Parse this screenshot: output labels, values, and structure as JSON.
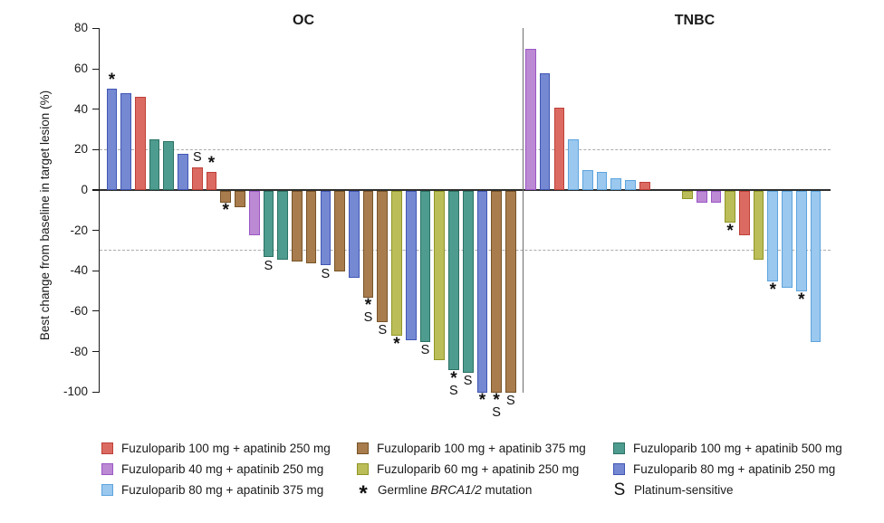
{
  "chart_data": {
    "type": "bar",
    "subtype": "waterfall",
    "ylabel": "Best change from baseline in target lesion (%)",
    "ylim": [
      -100,
      80
    ],
    "yticks": [
      80,
      60,
      40,
      20,
      0,
      -20,
      -40,
      -60,
      -80,
      -100
    ],
    "reference_lines": [
      20,
      -30
    ],
    "grid": "off",
    "legend_position": "bottom",
    "marks_meaning": {
      "*": "Germline BRCA1/2 mutation",
      "S": "Platinum-sensitive"
    },
    "colors": {
      "red": {
        "fill": "#DB6B62",
        "stroke": "#BE4038",
        "label": "Fuzuloparib 100 mg + apatinib 250 mg"
      },
      "violet": {
        "fill": "#BC89D4",
        "stroke": "#9B57C6",
        "label": "Fuzuloparib 40 mg + apatinib 250 mg"
      },
      "sky": {
        "fill": "#9BC8EF",
        "stroke": "#5CA4DD",
        "label": "Fuzuloparib 80 mg + apatinib 375 mg"
      },
      "brown": {
        "fill": "#A87C4D",
        "stroke": "#775327",
        "label": "Fuzuloparib 100 mg + apatinib 375 mg"
      },
      "yellow": {
        "fill": "#BABD58",
        "stroke": "#909626",
        "label": "Fuzuloparib 60 mg + apatinib 250 mg"
      },
      "teal": {
        "fill": "#4E9C8F",
        "stroke": "#2A7264",
        "label": "Fuzuloparib 100 mg + apatinib 500 mg"
      },
      "blue": {
        "fill": "#7489D2",
        "stroke": "#4156B4",
        "label": "Fuzuloparib 80 mg + apatinib 250 mg"
      }
    },
    "groups": [
      {
        "name": "OC",
        "bars": [
          {
            "value": 50,
            "color": "blue",
            "mark": "*"
          },
          {
            "value": 48,
            "color": "blue"
          },
          {
            "value": 46,
            "color": "red"
          },
          {
            "value": 25,
            "color": "teal"
          },
          {
            "value": 24,
            "color": "teal"
          },
          {
            "value": 18,
            "color": "blue"
          },
          {
            "value": 11,
            "color": "red",
            "mark": "S"
          },
          {
            "value": 9,
            "color": "red",
            "mark": "*"
          },
          {
            "value": -6,
            "color": "brown",
            "mark": "*"
          },
          {
            "value": -8,
            "color": "brown"
          },
          {
            "value": -22,
            "color": "violet"
          },
          {
            "value": -33,
            "color": "teal",
            "mark": "S"
          },
          {
            "value": -34,
            "color": "teal"
          },
          {
            "value": -35,
            "color": "brown"
          },
          {
            "value": -36,
            "color": "brown"
          },
          {
            "value": -37,
            "color": "blue",
            "mark": "S"
          },
          {
            "value": -40,
            "color": "brown"
          },
          {
            "value": -43,
            "color": "blue"
          },
          {
            "value": -53,
            "color": "brown",
            "mark": "*S"
          },
          {
            "value": -65,
            "color": "brown",
            "mark": "S"
          },
          {
            "value": -72,
            "color": "yellow",
            "mark": "*"
          },
          {
            "value": -74,
            "color": "blue"
          },
          {
            "value": -75,
            "color": "teal",
            "mark": "S"
          },
          {
            "value": -84,
            "color": "yellow"
          },
          {
            "value": -89,
            "color": "teal",
            "mark": "*S"
          },
          {
            "value": -90,
            "color": "teal",
            "mark": "S"
          },
          {
            "value": -100,
            "color": "blue",
            "mark": "*"
          },
          {
            "value": -100,
            "color": "brown",
            "mark": "*S"
          },
          {
            "value": -100,
            "color": "brown",
            "mark": "S"
          }
        ]
      },
      {
        "name": "TNBC",
        "bars": [
          {
            "value": 70,
            "color": "violet",
            "slot": 0
          },
          {
            "value": 58,
            "color": "blue",
            "slot": 1
          },
          {
            "value": 41,
            "color": "red",
            "slot": 2
          },
          {
            "value": 25,
            "color": "sky",
            "slot": 3
          },
          {
            "value": 10,
            "color": "sky",
            "slot": 4
          },
          {
            "value": 9,
            "color": "sky",
            "slot": 5
          },
          {
            "value": 6,
            "color": "sky",
            "slot": 6
          },
          {
            "value": 5,
            "color": "sky",
            "slot": 7
          },
          {
            "value": 4,
            "color": "red",
            "slot": 8
          },
          {
            "value": -4,
            "color": "yellow",
            "slot": 11
          },
          {
            "value": -6,
            "color": "violet",
            "slot": 12
          },
          {
            "value": -6,
            "color": "violet",
            "slot": 13
          },
          {
            "value": -16,
            "color": "yellow",
            "mark": "*",
            "slot": 14
          },
          {
            "value": -22,
            "color": "red",
            "slot": 15
          },
          {
            "value": -34,
            "color": "yellow",
            "slot": 16
          },
          {
            "value": -45,
            "color": "sky",
            "mark": "*",
            "slot": 17
          },
          {
            "value": -48,
            "color": "sky",
            "slot": 18
          },
          {
            "value": -50,
            "color": "sky",
            "mark": "*",
            "slot": 19
          },
          {
            "value": -75,
            "color": "sky",
            "slot": 20
          }
        ]
      }
    ]
  },
  "legend": {
    "columns": [
      {
        "items": [
          {
            "type": "swatch",
            "color": "red",
            "label": "Fuzuloparib 100 mg + apatinib 250 mg"
          },
          {
            "type": "swatch",
            "color": "violet",
            "label": "Fuzuloparib 40 mg + apatinib 250 mg"
          },
          {
            "type": "swatch",
            "color": "sky",
            "label": "Fuzuloparib 80 mg + apatinib 375 mg"
          }
        ]
      },
      {
        "items": [
          {
            "type": "swatch",
            "color": "brown",
            "label": "Fuzuloparib 100 mg + apatinib 375 mg"
          },
          {
            "type": "swatch",
            "color": "yellow",
            "label": "Fuzuloparib 60 mg + apatinib 250 mg"
          },
          {
            "type": "symbol",
            "symbol": "*",
            "label_prefix": "Germline ",
            "label_italic": "BRCA1/2",
            "label_suffix": " mutation"
          }
        ]
      },
      {
        "items": [
          {
            "type": "swatch",
            "color": "teal",
            "label": "Fuzuloparib 100 mg + apatinib 500 mg"
          },
          {
            "type": "swatch",
            "color": "blue",
            "label": "Fuzuloparib 80 mg + apatinib 250 mg"
          },
          {
            "type": "symbol",
            "symbol": "S",
            "label": "Platinum-sensitive"
          }
        ]
      }
    ]
  }
}
